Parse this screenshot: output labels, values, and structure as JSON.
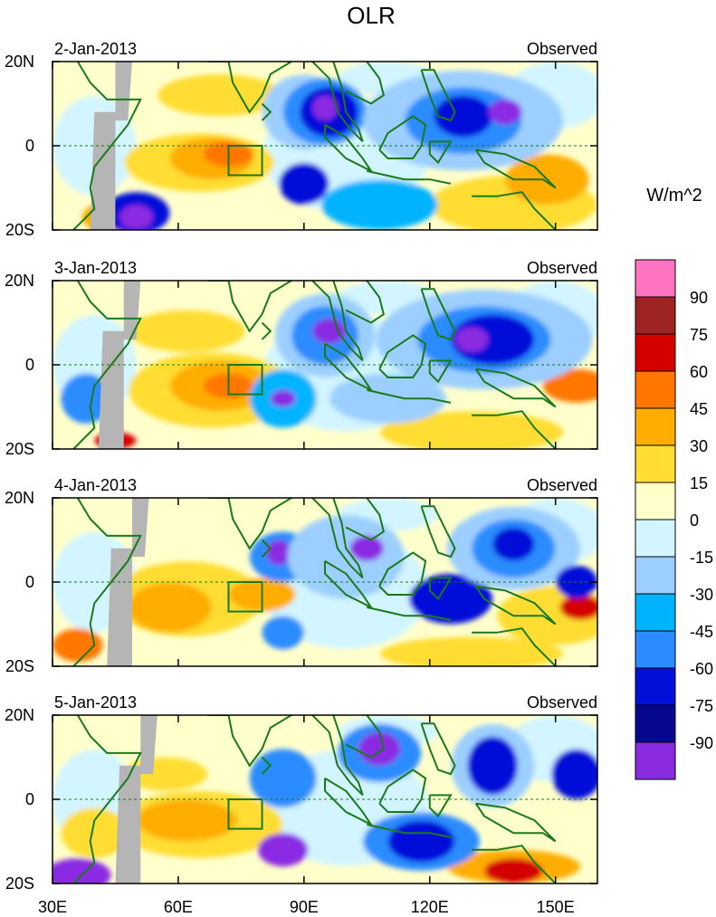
{
  "chart_data": {
    "type": "heatmap",
    "title": "OLR",
    "units_label": "W/m^2",
    "x_ticks": [
      {
        "value": 30,
        "label": "30E"
      },
      {
        "value": 60,
        "label": "60E"
      },
      {
        "value": 90,
        "label": "90E"
      },
      {
        "value": 120,
        "label": "120E"
      },
      {
        "value": 150,
        "label": "150E"
      }
    ],
    "xlim": [
      30,
      160
    ],
    "y_ticks": [
      {
        "value": 20,
        "label": "20N"
      },
      {
        "value": 0,
        "label": "0"
      },
      {
        "value": -20,
        "label": "20S"
      }
    ],
    "ylim": [
      -20,
      20
    ],
    "panels": [
      {
        "date": "2-Jan-2013",
        "source": "Observed"
      },
      {
        "date": "3-Jan-2013",
        "source": "Observed"
      },
      {
        "date": "4-Jan-2013",
        "source": "Observed"
      },
      {
        "date": "5-Jan-2013",
        "source": "Observed"
      }
    ],
    "colorbar": {
      "labels": [
        "90",
        "75",
        "60",
        "45",
        "30",
        "15",
        "0",
        "-15",
        "-30",
        "-45",
        "-60",
        "-75",
        "-90"
      ],
      "colors": [
        "#ff73c0",
        "#9e2424",
        "#d40000",
        "#ff7700",
        "#ffad00",
        "#ffdd33",
        "#ffffcc",
        "#d2f5ff",
        "#9ccfff",
        "#00b3ff",
        "#2a8cff",
        "#0010d8",
        "#06068f",
        "#8a2be2"
      ]
    },
    "region_box": {
      "lon": [
        72,
        80
      ],
      "lat": [
        -7,
        0
      ]
    }
  }
}
